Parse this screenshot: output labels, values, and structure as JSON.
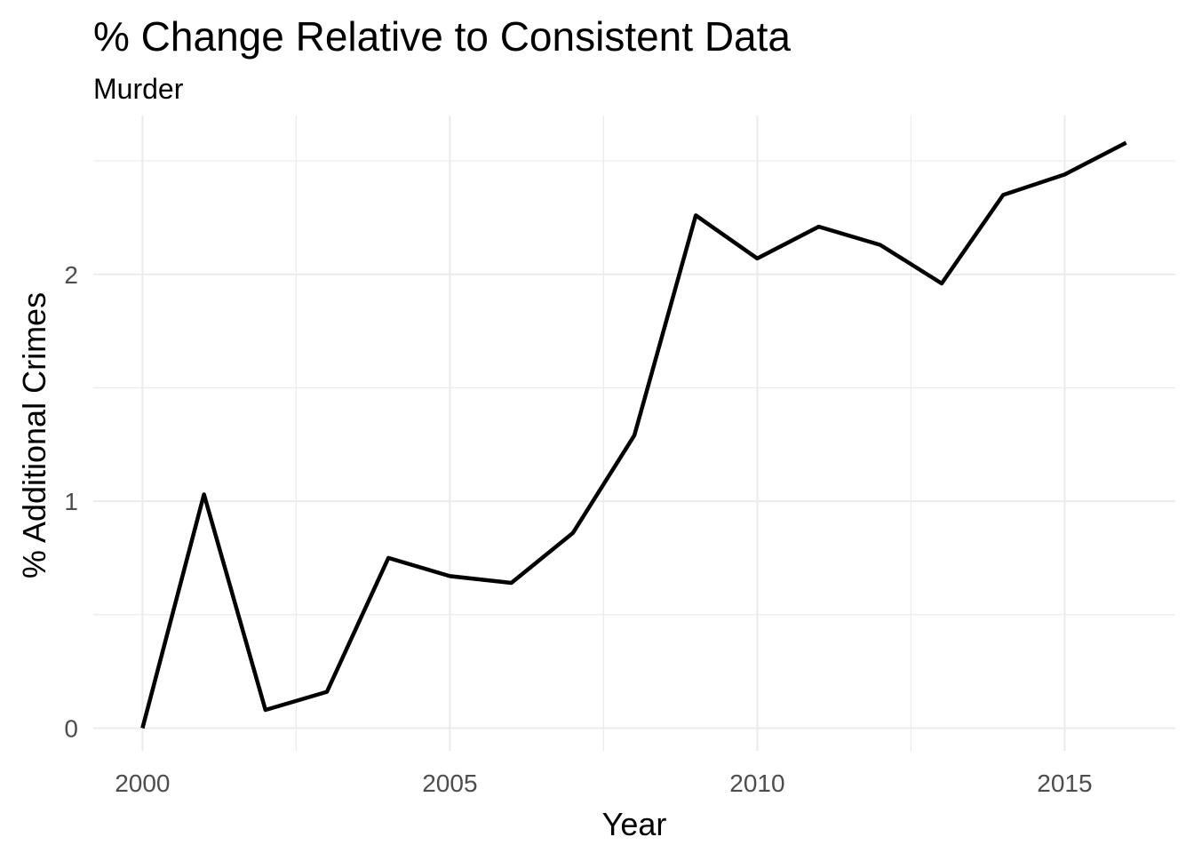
{
  "chart_data": {
    "type": "line",
    "title": "% Change Relative to Consistent Data",
    "subtitle": "Murder",
    "xlabel": "Year",
    "ylabel": "% Additional Crimes",
    "x": [
      2000,
      2001,
      2002,
      2003,
      2004,
      2005,
      2006,
      2007,
      2008,
      2009,
      2010,
      2011,
      2012,
      2013,
      2014,
      2015,
      2016
    ],
    "series": [
      {
        "values": [
          0.0,
          1.03,
          0.08,
          0.16,
          0.75,
          0.67,
          0.64,
          0.86,
          1.29,
          2.26,
          2.07,
          2.21,
          2.13,
          1.96,
          2.35,
          2.44,
          2.58
        ]
      }
    ],
    "xlim": [
      1999.2,
      2016.8
    ],
    "ylim": [
      -0.1,
      2.7
    ],
    "x_ticks": [
      2000,
      2005,
      2010,
      2015
    ],
    "x_tick_labels": [
      "2000",
      "2005",
      "2010",
      "2015"
    ],
    "y_ticks": [
      0,
      1,
      2
    ],
    "y_tick_labels": [
      "0",
      "1",
      "2"
    ],
    "grid": true,
    "line_color": "#000000",
    "grid_color": "#ebebeb"
  }
}
